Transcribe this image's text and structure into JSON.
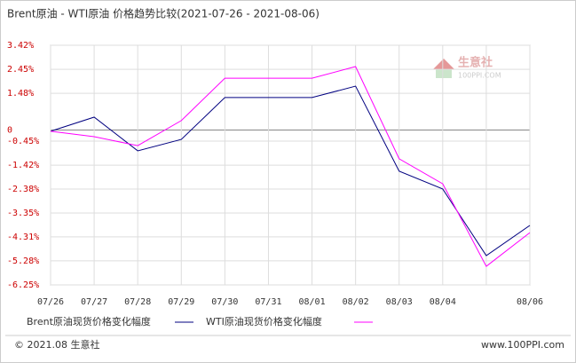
{
  "chart_data": {
    "type": "line",
    "title": "Brent原油 - WTI原油 价格趋势比较(2021-07-26 - 2021-08-06)",
    "categories": [
      "07/26",
      "07/27",
      "07/28",
      "07/29",
      "07/30",
      "07/31",
      "08/01",
      "08/02",
      "08/03",
      "08/04",
      null,
      "08/06"
    ],
    "series": [
      {
        "name": "Brent原油现货价格变化幅度",
        "color": "#000080",
        "values": [
          -0.05,
          0.52,
          -0.84,
          -0.38,
          1.31,
          1.31,
          1.31,
          1.77,
          -1.66,
          -2.38,
          -5.07,
          -3.85
        ]
      },
      {
        "name": "WTI原油现货价格变化幅度",
        "color": "#ff00ff",
        "values": [
          -0.05,
          -0.27,
          -0.63,
          0.38,
          2.09,
          2.09,
          2.09,
          2.56,
          -1.16,
          -2.17,
          -5.5,
          -4.14
        ]
      }
    ],
    "ylim": [
      -6.25,
      3.42
    ],
    "yticks": [
      {
        "value": 3.42,
        "label": "3.42%"
      },
      {
        "value": 2.45,
        "label": "2.45%"
      },
      {
        "value": 1.48,
        "label": "1.48%"
      },
      0,
      {
        "value": -0.45,
        "label": "-0.45%"
      },
      {
        "value": -1.42,
        "label": "-1.42%"
      },
      {
        "value": -2.38,
        "label": "-2.38%"
      },
      {
        "value": -3.35,
        "label": "-3.35%"
      },
      {
        "value": -4.31,
        "label": "-4.31%"
      },
      {
        "value": -5.28,
        "label": "-5.28%"
      },
      {
        "value": -6.25,
        "label": "-6.25%"
      }
    ],
    "grid": true,
    "watermark": [
      "生意社",
      "100PPI.COM"
    ],
    "footer": {
      "left": "© 2021.08 生意社",
      "right": "www.100PPI.com"
    }
  }
}
